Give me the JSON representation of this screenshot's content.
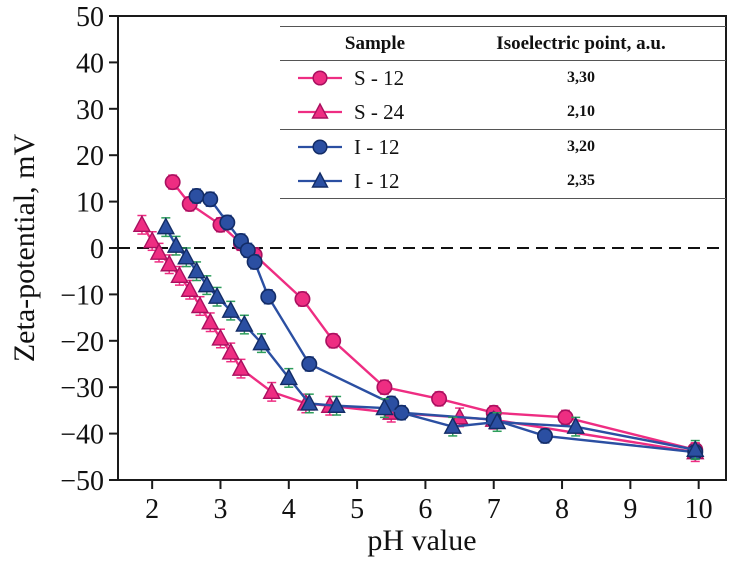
{
  "axes": {
    "xlabel": "pH value",
    "ylabel": "Zeta-potential, mV"
  },
  "legend": {
    "header_sample": "Sample",
    "header_iep": "Isoelectric point, a.u."
  },
  "chart_data": {
    "type": "line",
    "title": "",
    "xlabel": "pH value",
    "ylabel": "Zeta-potential, mV",
    "xlim": [
      1.5,
      10.4
    ],
    "ylim": [
      -50,
      50
    ],
    "xticks": [
      2,
      3,
      4,
      5,
      6,
      7,
      8,
      9,
      10
    ],
    "yticks": [
      -50,
      -40,
      -30,
      -20,
      -10,
      0,
      10,
      20,
      30,
      40,
      50
    ],
    "zero_line_y": 0,
    "grid": false,
    "frame_color": "#1a1a1a",
    "legend_position": "top-right-table",
    "series": [
      {
        "name": "S - 12",
        "iep": "3,30",
        "marker": "circle",
        "color": "#ee2d82",
        "edge_color": "#a8105f",
        "err_color": "#ee2d82",
        "err": 1.5,
        "points": [
          [
            2.3,
            14.2
          ],
          [
            2.55,
            9.5
          ],
          [
            3.0,
            5.0
          ],
          [
            3.3,
            1.0
          ],
          [
            3.5,
            -1.5
          ],
          [
            4.2,
            -11.0
          ],
          [
            4.65,
            -20.0
          ],
          [
            5.4,
            -30.0
          ],
          [
            6.2,
            -32.5
          ],
          [
            7.0,
            -35.5
          ],
          [
            8.05,
            -36.5
          ],
          [
            9.95,
            -43.5
          ]
        ]
      },
      {
        "name": "S - 24",
        "iep": "2,10",
        "marker": "triangle",
        "color": "#ee2d82",
        "edge_color": "#a8105f",
        "err_color": "#ee2d82",
        "err": 2.0,
        "points": [
          [
            1.85,
            5.0
          ],
          [
            2.0,
            1.5
          ],
          [
            2.1,
            -1.0
          ],
          [
            2.25,
            -3.5
          ],
          [
            2.4,
            -6.0
          ],
          [
            2.55,
            -9.0
          ],
          [
            2.7,
            -12.5
          ],
          [
            2.85,
            -16.0
          ],
          [
            3.0,
            -19.5
          ],
          [
            3.15,
            -22.5
          ],
          [
            3.3,
            -26.0
          ],
          [
            3.75,
            -31.0
          ],
          [
            4.25,
            -33.5
          ],
          [
            4.6,
            -34.0
          ],
          [
            5.5,
            -35.5
          ],
          [
            6.5,
            -36.5
          ],
          [
            7.0,
            -37.0
          ],
          [
            9.95,
            -44.0
          ]
        ]
      },
      {
        "name": "I - 12",
        "iep": "3,20",
        "marker": "circle",
        "color": "#2b4fa2",
        "edge_color": "#132c66",
        "err_color": "#2b4fa2",
        "err": 1.5,
        "points": [
          [
            2.65,
            11.2
          ],
          [
            2.85,
            10.5
          ],
          [
            3.1,
            5.5
          ],
          [
            3.3,
            1.5
          ],
          [
            3.4,
            -0.5
          ],
          [
            3.5,
            -3.0
          ],
          [
            3.7,
            -10.5
          ],
          [
            4.3,
            -25.0
          ],
          [
            5.5,
            -33.5
          ],
          [
            5.65,
            -35.5
          ],
          [
            7.0,
            -37.0
          ],
          [
            7.75,
            -40.5
          ],
          [
            9.95,
            -44.0
          ]
        ]
      },
      {
        "name": "I - 12",
        "iep": "2,35",
        "marker": "triangle",
        "color": "#2b4fa2",
        "edge_color": "#132c66",
        "err_color": "#2e9e5b",
        "err": 2.0,
        "points": [
          [
            2.2,
            4.5
          ],
          [
            2.35,
            0.5
          ],
          [
            2.5,
            -2.0
          ],
          [
            2.65,
            -5.0
          ],
          [
            2.8,
            -8.0
          ],
          [
            2.95,
            -10.5
          ],
          [
            3.15,
            -13.5
          ],
          [
            3.35,
            -16.5
          ],
          [
            3.6,
            -20.5
          ],
          [
            4.0,
            -28.0
          ],
          [
            4.3,
            -33.5
          ],
          [
            4.7,
            -34.0
          ],
          [
            5.4,
            -34.5
          ],
          [
            6.4,
            -38.5
          ],
          [
            7.05,
            -37.5
          ],
          [
            8.2,
            -38.5
          ],
          [
            9.95,
            -43.5
          ]
        ]
      }
    ]
  }
}
